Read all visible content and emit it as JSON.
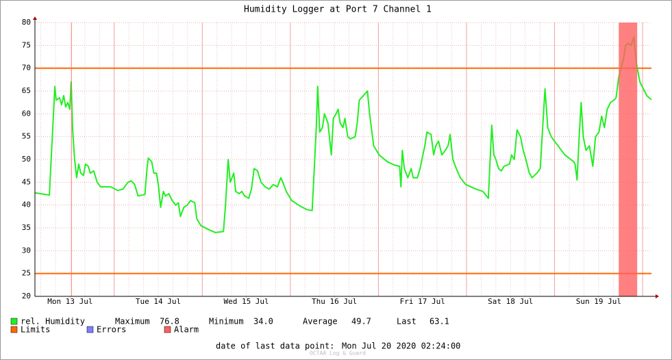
{
  "chart_data": {
    "type": "line",
    "title": "Humidity Logger at Port 7 Channel 1",
    "xlim": [
      "2020-07-13T02:24",
      "2020-07-20T02:24"
    ],
    "xticks": [
      {
        "value": "2020-07-13T12:00",
        "label": "Mon 13 Jul"
      },
      {
        "value": "2020-07-14T12:00",
        "label": "Tue 14 Jul"
      },
      {
        "value": "2020-07-15T12:00",
        "label": "Wed 15 Jul"
      },
      {
        "value": "2020-07-16T12:00",
        "label": "Thu 16 Jul"
      },
      {
        "value": "2020-07-17T12:00",
        "label": "Fri 17 Jul"
      },
      {
        "value": "2020-07-18T12:00",
        "label": "Sat 18 Jul"
      },
      {
        "value": "2020-07-19T12:00",
        "label": "Sun 19 Jul"
      }
    ],
    "ylim": [
      20,
      80
    ],
    "yticks": [
      20,
      25,
      30,
      35,
      40,
      45,
      50,
      55,
      60,
      65,
      70,
      75,
      80
    ],
    "grid": true,
    "x": [
      "2020-07-13T02:24",
      "2020-07-13T06:20",
      "2020-07-13T06:42",
      "2020-07-13T07:27",
      "2020-07-13T07:49",
      "2020-07-13T08:11",
      "2020-07-13T09:07",
      "2020-07-13T09:40",
      "2020-07-13T10:14",
      "2020-07-13T10:47",
      "2020-07-13T11:21",
      "2020-07-13T11:54",
      "2020-07-13T12:17",
      "2020-07-13T12:39",
      "2020-07-13T13:13",
      "2020-07-13T13:46",
      "2020-07-13T14:20",
      "2020-07-13T14:53",
      "2020-07-13T15:38",
      "2020-07-13T16:11",
      "2020-07-13T16:56",
      "2020-07-13T17:29",
      "2020-07-13T18:25",
      "2020-07-13T19:21",
      "2020-07-13T20:17",
      "2020-07-13T23:04",
      "2020-07-14T00:56",
      "2020-07-14T02:25",
      "2020-07-14T03:43",
      "2020-07-14T04:39",
      "2020-07-14T05:35",
      "2020-07-14T06:31",
      "2020-07-14T08:22",
      "2020-07-14T08:56",
      "2020-07-14T09:18",
      "2020-07-14T10:14",
      "2020-07-14T10:47",
      "2020-07-14T11:32",
      "2020-07-14T12:06",
      "2020-07-14T12:39",
      "2020-07-14T13:24",
      "2020-07-14T13:57",
      "2020-07-14T14:53",
      "2020-07-14T15:49",
      "2020-07-14T16:45",
      "2020-07-14T17:29",
      "2020-07-14T18:03",
      "2020-07-14T18:59",
      "2020-07-14T19:54",
      "2020-07-14T20:50",
      "2020-07-14T21:57",
      "2020-07-14T22:31",
      "2020-07-14T23:38",
      "2020-07-15T02:03",
      "2020-07-15T03:32",
      "2020-07-15T05:46",
      "2020-07-15T06:20",
      "2020-07-15T07:04",
      "2020-07-15T07:38",
      "2020-07-15T08:34",
      "2020-07-15T09:07",
      "2020-07-15T10:03",
      "2020-07-15T10:47",
      "2020-07-15T11:32",
      "2020-07-15T12:39",
      "2020-07-15T13:24",
      "2020-07-15T14:08",
      "2020-07-15T15:04",
      "2020-07-15T16:00",
      "2020-07-15T17:07",
      "2020-07-15T18:14",
      "2020-07-15T19:21",
      "2020-07-15T20:28",
      "2020-07-15T21:24",
      "2020-07-15T21:57",
      "2020-07-15T22:53",
      "2020-07-16T00:22",
      "2020-07-16T02:14",
      "2020-07-16T04:28",
      "2020-07-16T05:57",
      "2020-07-16T06:31",
      "2020-07-16T07:04",
      "2020-07-16T07:27",
      "2020-07-16T08:00",
      "2020-07-16T08:45",
      "2020-07-16T09:18",
      "2020-07-16T10:14",
      "2020-07-16T11:10",
      "2020-07-16T11:43",
      "2020-07-16T12:28",
      "2020-07-16T13:01",
      "2020-07-16T13:35",
      "2020-07-16T14:20",
      "2020-07-16T14:53",
      "2020-07-16T15:38",
      "2020-07-16T16:22",
      "2020-07-16T17:40",
      "2020-07-16T18:14",
      "2020-07-16T18:47",
      "2020-07-16T19:54",
      "2020-07-16T21:01",
      "2020-07-16T21:35",
      "2020-07-16T22:42",
      "2020-07-17T00:11",
      "2020-07-17T02:25",
      "2020-07-17T04:17",
      "2020-07-17T05:46",
      "2020-07-17T06:08",
      "2020-07-17T06:31",
      "2020-07-17T07:04",
      "2020-07-17T08:00",
      "2020-07-17T08:56",
      "2020-07-17T09:29",
      "2020-07-17T10:36",
      "2020-07-17T11:21",
      "2020-07-17T12:06",
      "2020-07-17T12:39",
      "2020-07-17T13:13",
      "2020-07-17T14:20",
      "2020-07-17T15:04",
      "2020-07-17T15:38",
      "2020-07-17T16:22",
      "2020-07-17T17:18",
      "2020-07-17T18:14",
      "2020-07-17T18:59",
      "2020-07-17T19:32",
      "2020-07-17T20:17",
      "2020-07-17T21:13",
      "2020-07-17T22:20",
      "2020-07-17T23:49",
      "2020-07-18T02:36",
      "2020-07-18T04:28",
      "2020-07-18T05:57",
      "2020-07-18T06:20",
      "2020-07-18T06:53",
      "2020-07-18T07:27",
      "2020-07-18T08:00",
      "2020-07-18T08:45",
      "2020-07-18T09:29",
      "2020-07-18T10:14",
      "2020-07-18T11:43",
      "2020-07-18T12:17",
      "2020-07-18T13:01",
      "2020-07-18T13:46",
      "2020-07-18T14:42",
      "2020-07-18T15:27",
      "2020-07-18T16:11",
      "2020-07-18T17:07",
      "2020-07-18T17:52",
      "2020-07-18T19:10",
      "2020-07-18T20:06",
      "2020-07-18T20:50",
      "2020-07-18T21:24",
      "2020-07-18T22:08",
      "2020-07-18T23:04",
      "2020-07-19T00:56",
      "2020-07-19T02:47",
      "2020-07-19T05:13",
      "2020-07-19T05:35",
      "2020-07-19T06:08",
      "2020-07-19T06:42",
      "2020-07-19T07:15",
      "2020-07-19T07:49",
      "2020-07-19T08:34",
      "2020-07-19T09:29",
      "2020-07-19T10:25",
      "2020-07-19T11:10",
      "2020-07-19T12:06",
      "2020-07-19T12:50",
      "2020-07-19T13:35",
      "2020-07-19T14:20",
      "2020-07-19T15:15",
      "2020-07-19T16:11",
      "2020-07-19T16:45",
      "2020-07-19T17:29",
      "2020-07-19T18:14",
      "2020-07-19T18:47",
      "2020-07-19T19:21",
      "2020-07-19T20:06",
      "2020-07-19T20:50",
      "2020-07-19T21:35",
      "2020-07-19T22:20",
      "2020-07-19T23:15",
      "2020-07-20T01:07",
      "2020-07-20T02:24"
    ],
    "series": [
      {
        "name": "rel. Humidity",
        "color": "#22ee22",
        "values": [
          42.7,
          42.2,
          48,
          60,
          66,
          63,
          63.5,
          62,
          64,
          61.5,
          62.5,
          61,
          67,
          57,
          50,
          46,
          49,
          47,
          46.5,
          49,
          48.5,
          47,
          47.5,
          45,
          44,
          44,
          43.2,
          43.5,
          45,
          45.3,
          44.5,
          42,
          42.3,
          48,
          50.3,
          49.5,
          47,
          47,
          44,
          39.5,
          43,
          42,
          42.5,
          41,
          40,
          40.5,
          37.5,
          39.5,
          40,
          41,
          40.5,
          37,
          35.5,
          34.5,
          34,
          34.2,
          40,
          50,
          45,
          47,
          43,
          42.5,
          43,
          42,
          41.5,
          43.5,
          48,
          47.5,
          45,
          44,
          43.5,
          44.5,
          44,
          46,
          45,
          43,
          41,
          40,
          39,
          38.8,
          48,
          57,
          66,
          56,
          57,
          60,
          58,
          51,
          59,
          60,
          61,
          58,
          57,
          59,
          55,
          54.5,
          55,
          58,
          63,
          64,
          65,
          60,
          53,
          51,
          49.5,
          48.8,
          48.5,
          44,
          52,
          48,
          46,
          48,
          46,
          46,
          48,
          51,
          53,
          56,
          55.5,
          51,
          53,
          54,
          51,
          52,
          53,
          55.5,
          50,
          48,
          46,
          44.5,
          43.5,
          43,
          41.5,
          48,
          57.5,
          51,
          50,
          48,
          47.5,
          48.5,
          49,
          51,
          50,
          56.5,
          55,
          52,
          50,
          47,
          46,
          47,
          48,
          58,
          65.5,
          57,
          55,
          53,
          51,
          49.5,
          49,
          45.5,
          55,
          62.5,
          55,
          52,
          53,
          48.5,
          55,
          56,
          59.5,
          57,
          61,
          62.5,
          63,
          63.5,
          68,
          70.5,
          72,
          75,
          75.5,
          75,
          76.8,
          71,
          67,
          64,
          63.1
        ]
      }
    ],
    "limits": {
      "name": "Limits",
      "color": "#ff6600",
      "values": [
        70,
        25
      ]
    },
    "errors": {
      "name": "Errors",
      "color": "#7f7fff"
    },
    "alarm": {
      "name": "Alarm",
      "color": "#ff6060",
      "intervals": [
        [
          "2020-07-13T12:17",
          "2020-07-13T12:28"
        ],
        [
          "2020-07-19T17:29",
          "2020-07-19T22:31"
        ]
      ]
    },
    "stats": [
      {
        "label": "Maximum",
        "value": "76.8"
      },
      {
        "label": "Minimum",
        "value": "34.0"
      },
      {
        "label": "Average",
        "value": "49.7"
      },
      {
        "label": "Last",
        "value": "63.1"
      }
    ],
    "last_point": {
      "label": "date of last data point:",
      "value": "Mon Jul 20 2020 02:24:00"
    },
    "footer": "OCTAA Log & Guard"
  }
}
